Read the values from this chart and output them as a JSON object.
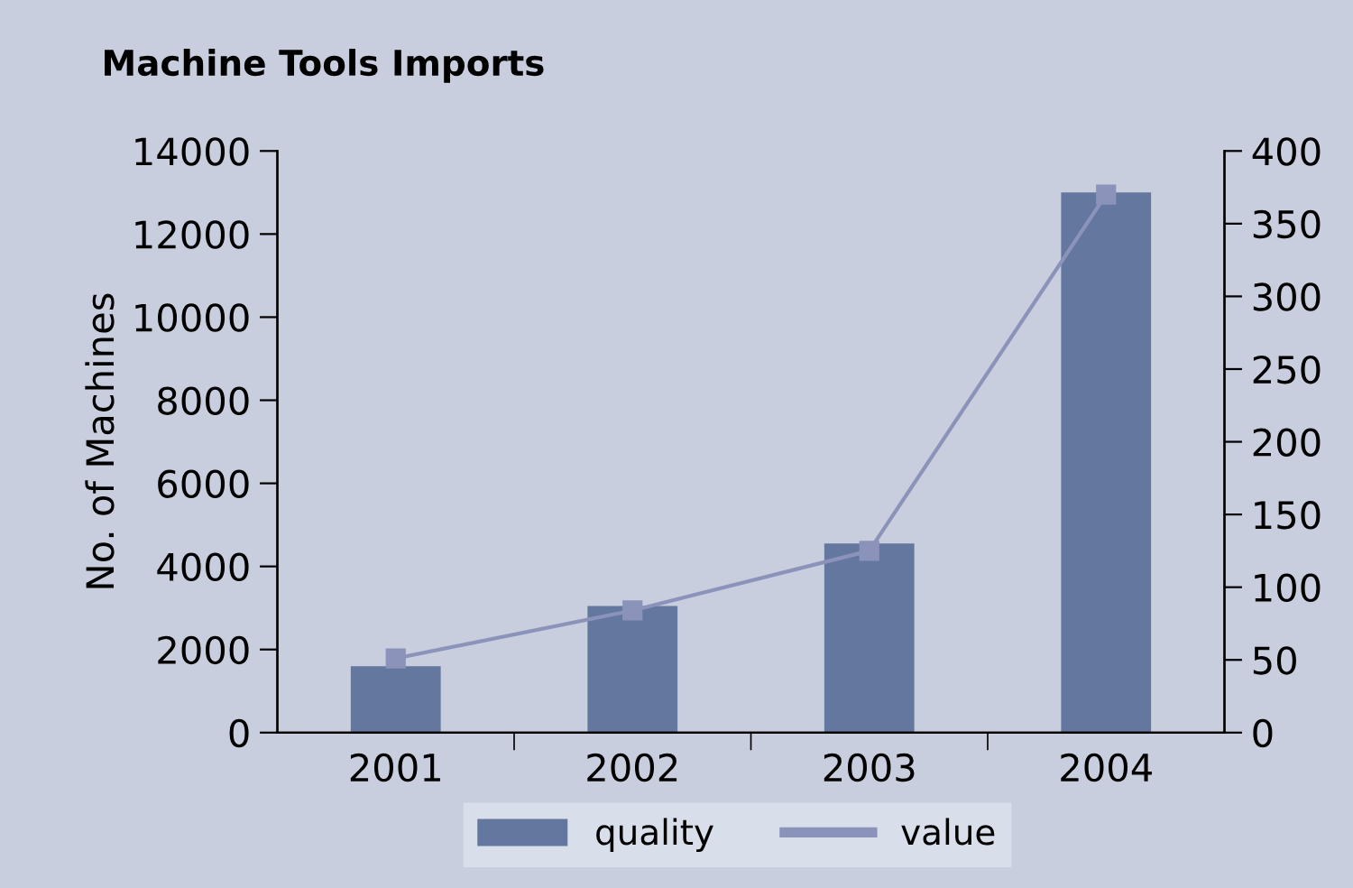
{
  "chart_data": {
    "type": "bar",
    "title": "Machine Tools Imports",
    "ylabel": "No. of Machines",
    "categories": [
      "2001",
      "2002",
      "2003",
      "2004"
    ],
    "series": [
      {
        "name": "quality",
        "color": "#64779f",
        "values": [
          1600,
          3050,
          4550,
          13000
        ]
      },
      {
        "name": "value",
        "type": "line",
        "axis": "y2",
        "color": "#8c93bb",
        "marker": "square",
        "values": [
          51,
          84,
          125,
          370
        ]
      }
    ],
    "ylim": [
      0,
      14000
    ],
    "yticks": [
      0,
      2000,
      4000,
      6000,
      8000,
      10000,
      12000,
      14000
    ],
    "y2lim": [
      0,
      400
    ],
    "y2ticks": [
      0,
      50,
      100,
      150,
      200,
      250,
      300,
      350,
      400
    ],
    "grid": false,
    "legend": "bottom"
  }
}
